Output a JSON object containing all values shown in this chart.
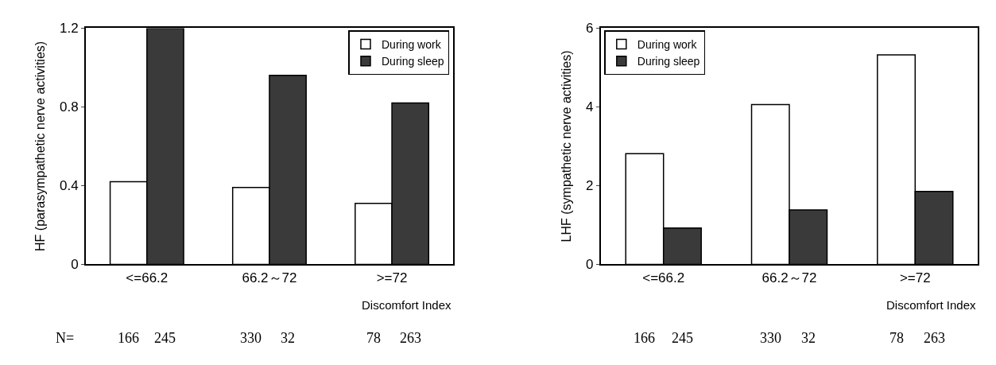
{
  "chart_data": [
    {
      "type": "bar",
      "ylabel": "HF (parasympathetic nerve activities)",
      "xlabel": "Discomfort Index",
      "categories": [
        "<=66.2",
        "66.2～72",
        ">=72"
      ],
      "series": [
        {
          "name": "During work",
          "color": "#ffffff",
          "values": [
            0.42,
            0.39,
            0.31
          ]
        },
        {
          "name": "During sleep",
          "color": "#3a3a3a",
          "values": [
            1.2,
            0.96,
            0.82
          ]
        }
      ],
      "ylim": [
        0,
        1.2
      ],
      "yticks": [
        0,
        0.4,
        0.8,
        1.2
      ],
      "legend": "top right",
      "annotations": [
        "N=",
        "166",
        "245",
        "330",
        "32",
        "78",
        "263"
      ]
    },
    {
      "type": "bar",
      "ylabel": "LHF (sympathetic nerve activities)",
      "xlabel": "Discomfort Index",
      "categories": [
        "<=66.2",
        "66.2～72",
        ">=72"
      ],
      "series": [
        {
          "name": "During work",
          "color": "#ffffff",
          "values": [
            2.81,
            4.06,
            5.32
          ]
        },
        {
          "name": "During sleep",
          "color": "#3a3a3a",
          "values": [
            0.92,
            1.38,
            1.85
          ]
        }
      ],
      "ylim": [
        0,
        6
      ],
      "yticks": [
        0,
        2,
        4,
        6
      ],
      "legend": "top left",
      "annotations": [
        "166",
        "245",
        "330",
        "32",
        "78",
        "263"
      ]
    }
  ]
}
